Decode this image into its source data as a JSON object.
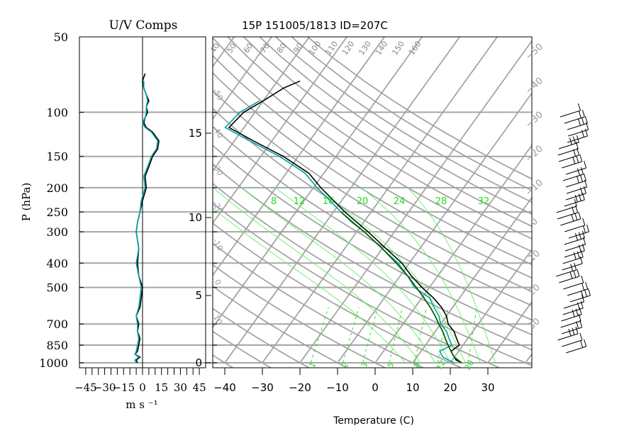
{
  "chart_data": [
    {
      "type": "line",
      "panel": "uv-components",
      "title": "U/V Comps",
      "xlabel": "m s ⁻¹",
      "ylabel": "P (hPa)",
      "xlim": [
        -50,
        50
      ],
      "ylim_hpa": [
        1000,
        50
      ],
      "y_scale": "log",
      "grid": true,
      "x_ticks": [
        -45,
        -30,
        -15,
        0,
        15,
        30,
        45
      ],
      "x_tick_labels": [
        "−45",
        "−30",
        "−15",
        "0",
        "15",
        "30",
        "45"
      ],
      "p_ticks": [
        1000,
        850,
        700,
        500,
        400,
        300,
        250,
        200,
        150,
        100,
        50
      ],
      "series": [
        {
          "color": "#000000",
          "points": [
            [
              1000,
              -4
            ],
            [
              975,
              -5
            ],
            [
              950,
              -2
            ],
            [
              925,
              -6
            ],
            [
              900,
              -4
            ],
            [
              850,
              -3
            ],
            [
              800,
              -2
            ],
            [
              750,
              -4
            ],
            [
              700,
              -3
            ],
            [
              650,
              -5
            ],
            [
              600,
              -2
            ],
            [
              550,
              -1
            ],
            [
              500,
              0
            ],
            [
              450,
              -3
            ],
            [
              400,
              -4
            ],
            [
              350,
              -3
            ],
            [
              300,
              -5
            ],
            [
              275,
              -4
            ],
            [
              250,
              -2
            ],
            [
              225,
              0
            ],
            [
              200,
              3
            ],
            [
              180,
              2
            ],
            [
              165,
              5
            ],
            [
              150,
              8
            ],
            [
              140,
              12
            ],
            [
              130,
              13
            ],
            [
              120,
              8
            ],
            [
              115,
              3
            ],
            [
              110,
              1
            ],
            [
              105,
              2
            ],
            [
              100,
              4
            ],
            [
              95,
              3
            ],
            [
              90,
              5
            ],
            [
              85,
              3
            ],
            [
              80,
              1
            ],
            [
              75,
              0
            ],
            [
              70,
              2
            ]
          ]
        },
        {
          "color": "#00a0a0",
          "points": [
            [
              1000,
              -5
            ],
            [
              975,
              -6
            ],
            [
              950,
              -3
            ],
            [
              925,
              -6
            ],
            [
              900,
              -5
            ],
            [
              850,
              -4
            ],
            [
              800,
              -3
            ],
            [
              750,
              -4
            ],
            [
              700,
              -4
            ],
            [
              650,
              -5
            ],
            [
              600,
              -3
            ],
            [
              550,
              -2
            ],
            [
              500,
              -1
            ],
            [
              450,
              -3
            ],
            [
              400,
              -5
            ],
            [
              350,
              -3
            ],
            [
              300,
              -5
            ],
            [
              275,
              -4
            ],
            [
              250,
              -2
            ],
            [
              225,
              -1
            ],
            [
              200,
              2
            ],
            [
              180,
              1
            ],
            [
              165,
              4
            ],
            [
              150,
              7
            ],
            [
              140,
              11
            ],
            [
              130,
              12
            ],
            [
              120,
              7
            ],
            [
              115,
              2
            ],
            [
              110,
              0
            ],
            [
              105,
              2
            ],
            [
              100,
              3
            ],
            [
              95,
              3
            ],
            [
              90,
              4
            ],
            [
              85,
              3
            ],
            [
              80,
              1
            ],
            [
              75,
              1
            ]
          ]
        }
      ]
    },
    {
      "type": "line",
      "panel": "skew-t",
      "title": "15P 151005/1813 ID=207C",
      "xlabel": "Temperature (C)",
      "xlim": [
        -42,
        42
      ],
      "x_ticks": [
        -40,
        -30,
        -20,
        -10,
        0,
        10,
        20,
        30
      ],
      "x_tick_labels": [
        "−40",
        "−30",
        "−20",
        "−10",
        "0",
        "10",
        "20",
        "30"
      ],
      "height_km_ticks": [
        0,
        5,
        10,
        15
      ],
      "height_km_tick_labels": [
        "0",
        "5",
        "10",
        "15"
      ],
      "isotherm_labels_upper_left": [
        "-50",
        "-40",
        "-30",
        "-20",
        "-10",
        "0",
        "10"
      ],
      "isotherm_labels_right": [
        "−50",
        "−40",
        "−30",
        "−20",
        "−10",
        "0",
        "10",
        "20",
        "30"
      ],
      "dry_adiabat_labels": [
        "40",
        "50",
        "60",
        "70",
        "80",
        "90",
        "100",
        "110",
        "120",
        "130",
        "140",
        "150",
        "160"
      ],
      "moist_adiabat_labels": [
        "8",
        "12",
        "16",
        "20",
        "24",
        "28",
        "32"
      ],
      "mixing_ratio_labels": [
        "1",
        "2",
        "3",
        "5",
        "8",
        "12",
        "20"
      ],
      "series": [
        {
          "name": "temperature",
          "color": "#000000",
          "points": [
            [
              1000,
              23
            ],
            [
              975,
              21
            ],
            [
              950,
              20
            ],
            [
              925,
              19
            ],
            [
              900,
              18
            ],
            [
              850,
              19
            ],
            [
              800,
              17
            ],
            [
              750,
              15
            ],
            [
              700,
              12
            ],
            [
              650,
              10
            ],
            [
              600,
              7
            ],
            [
              550,
              3
            ],
            [
              500,
              -2
            ],
            [
              450,
              -7
            ],
            [
              400,
              -12
            ],
            [
              350,
              -19
            ],
            [
              300,
              -27
            ],
            [
              250,
              -37
            ],
            [
              200,
              -48
            ],
            [
              175,
              -54
            ],
            [
              150,
              -64
            ],
            [
              130,
              -75
            ],
            [
              115,
              -84
            ],
            [
              100,
              -83
            ],
            [
              90,
              -80
            ],
            [
              80,
              -77
            ],
            [
              75,
              -74
            ]
          ]
        },
        {
          "name": "dewpoint",
          "color": "#00a0a0",
          "points": [
            [
              1000,
              21
            ],
            [
              975,
              19
            ],
            [
              950,
              17
            ],
            [
              925,
              16
            ],
            [
              900,
              15
            ],
            [
              850,
              17
            ],
            [
              800,
              15
            ],
            [
              750,
              13
            ],
            [
              700,
              10
            ],
            [
              650,
              8
            ],
            [
              600,
              5
            ],
            [
              550,
              2
            ],
            [
              500,
              -4
            ],
            [
              450,
              -8
            ],
            [
              400,
              -13
            ],
            [
              350,
              -20
            ],
            [
              300,
              -28
            ],
            [
              250,
              -38
            ],
            [
              200,
              -49
            ],
            [
              175,
              -55
            ],
            [
              150,
              -65
            ],
            [
              130,
              -76
            ],
            [
              115,
              -85
            ],
            [
              100,
              -84
            ],
            [
              90,
              -81
            ]
          ]
        },
        {
          "name": "parcel",
          "color": "#006400",
          "points": [
            [
              1000,
              23
            ],
            [
              950,
              20
            ],
            [
              900,
              18
            ],
            [
              850,
              16
            ],
            [
              800,
              14
            ],
            [
              750,
              12
            ],
            [
              700,
              9.5
            ],
            [
              650,
              7
            ],
            [
              600,
              4
            ],
            [
              550,
              0.5
            ],
            [
              500,
              -3.5
            ],
            [
              450,
              -8
            ],
            [
              400,
              -13.5
            ],
            [
              350,
              -20
            ],
            [
              300,
              -28
            ],
            [
              275,
              -33
            ],
            [
              250,
              -38
            ]
          ]
        }
      ]
    }
  ]
}
